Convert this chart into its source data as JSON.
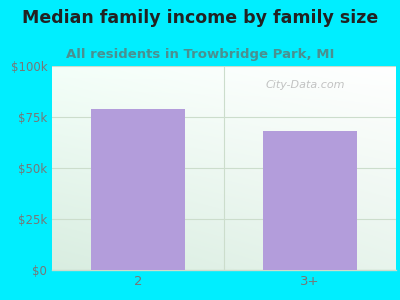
{
  "title": "Median family income by family size",
  "subtitle": "All residents in Trowbridge Park, MI",
  "categories": [
    "2",
    "3+"
  ],
  "values": [
    79000,
    68000
  ],
  "bar_color": "#b39ddb",
  "bar_width": 0.55,
  "ylim": [
    0,
    100000
  ],
  "yticks": [
    0,
    25000,
    50000,
    75000,
    100000
  ],
  "ytick_labels": [
    "$0",
    "$25k",
    "$50k",
    "$75k",
    "$100k"
  ],
  "outer_bg_color": "#00eeff",
  "plot_bg_topleft": "#d8f0e0",
  "plot_bg_topright": "#ffffff",
  "plot_bg_bottomleft": "#c8ecd4",
  "plot_bg_bottomright": "#eaf8ee",
  "title_color": "#222222",
  "subtitle_color": "#4a9090",
  "tick_color": "#777777",
  "watermark_text": "City-Data.com",
  "title_fontsize": 12.5,
  "subtitle_fontsize": 9.5,
  "grid_color": "#ccddcc"
}
